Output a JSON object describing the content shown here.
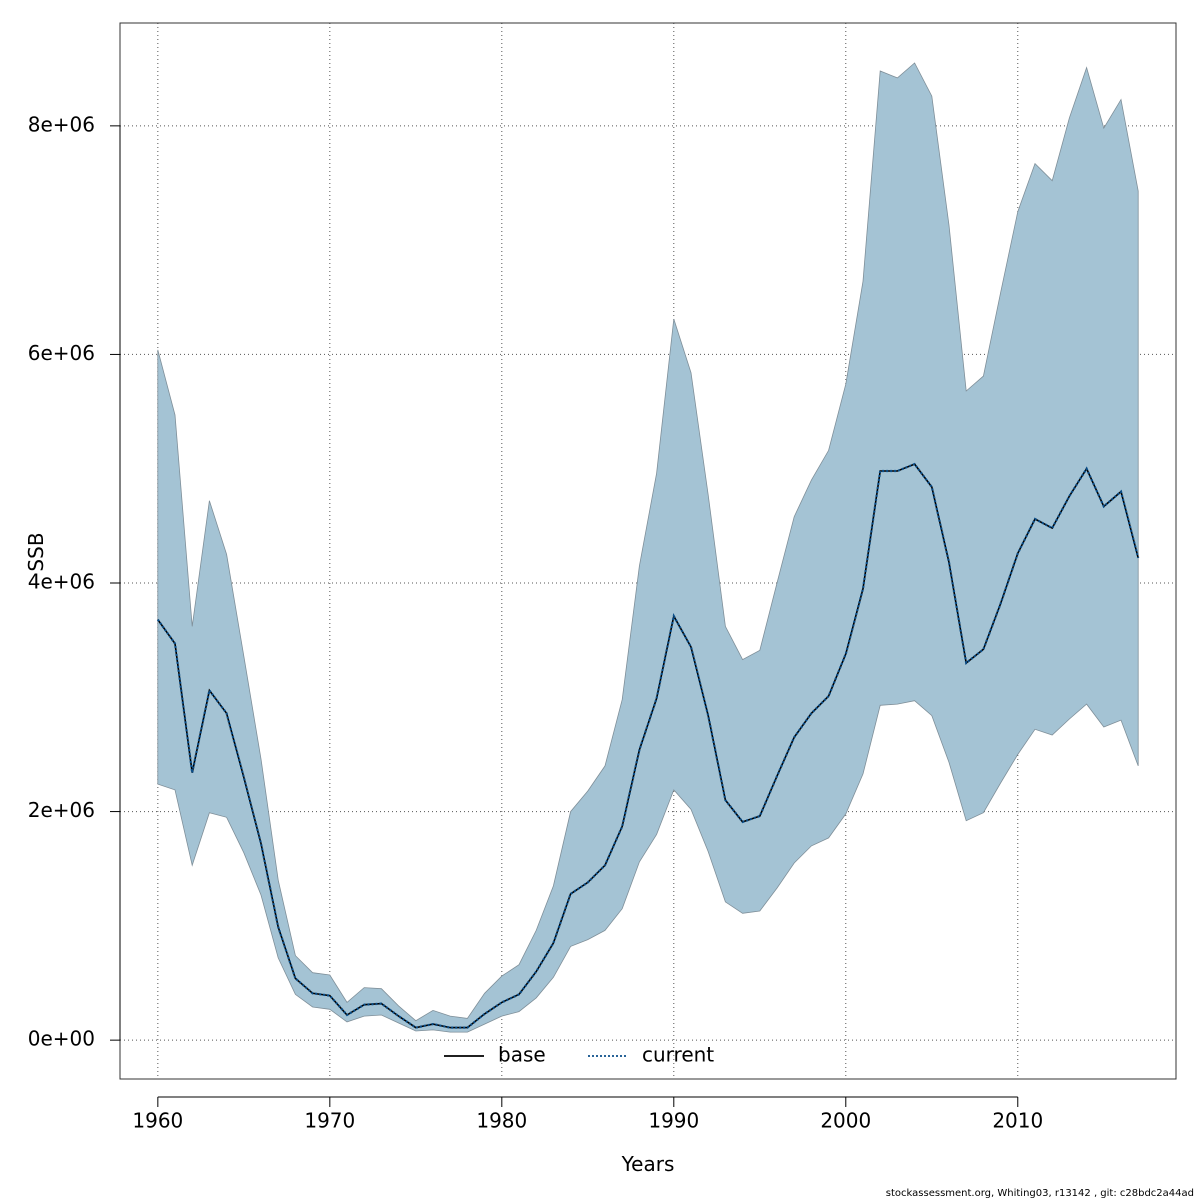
{
  "chart_data": {
    "type": "area",
    "title": "",
    "xlabel": "Years",
    "ylabel": "SSB",
    "xlim": [
      1957.8,
      2019.2
    ],
    "ylim": [
      -340000,
      8900000
    ],
    "x_ticks": [
      1960,
      1970,
      1980,
      1990,
      2000,
      2010
    ],
    "x_tick_labels": [
      "1960",
      "1970",
      "1980",
      "1990",
      "2000",
      "2010"
    ],
    "y_ticks": [
      0,
      2000000,
      4000000,
      6000000,
      8000000
    ],
    "y_tick_labels": [
      "0e+00",
      "2e+06",
      "4e+06",
      "6e+06",
      "8e+06"
    ],
    "grid": true,
    "legend_position": "bottom",
    "x": [
      1960,
      1961,
      1962,
      1963,
      1964,
      1965,
      1966,
      1967,
      1968,
      1969,
      1970,
      1971,
      1972,
      1973,
      1974,
      1975,
      1976,
      1977,
      1978,
      1979,
      1980,
      1981,
      1982,
      1983,
      1984,
      1985,
      1986,
      1987,
      1988,
      1989,
      1990,
      1991,
      1992,
      1993,
      1994,
      1995,
      1996,
      1997,
      1998,
      1999,
      2000,
      2001,
      2002,
      2003,
      2004,
      2005,
      2006,
      2007,
      2008,
      2009,
      2010,
      2011,
      2012,
      2013,
      2014,
      2015,
      2016,
      2017
    ],
    "band": {
      "name": "",
      "color": "#a4c3d4",
      "upper": [
        6040000,
        5470000,
        3620000,
        4720000,
        4250000,
        3360000,
        2460000,
        1400000,
        740000,
        590000,
        570000,
        330000,
        460000,
        450000,
        300000,
        170000,
        260000,
        210000,
        190000,
        410000,
        560000,
        660000,
        960000,
        1350000,
        2000000,
        2180000,
        2400000,
        2980000,
        4150000,
        4960000,
        6310000,
        5840000,
        4770000,
        3620000,
        3330000,
        3410000,
        4000000,
        4580000,
        4900000,
        5160000,
        5740000,
        6640000,
        8480000,
        8420000,
        8550000,
        8260000,
        7130000,
        5680000,
        5810000,
        6540000,
        7250000,
        7670000,
        7520000,
        8070000,
        8510000,
        7980000,
        8230000,
        7430000
      ],
      "lower": [
        2240000,
        2190000,
        1530000,
        1990000,
        1950000,
        1640000,
        1270000,
        720000,
        400000,
        290000,
        270000,
        160000,
        210000,
        220000,
        150000,
        80000,
        90000,
        70000,
        70000,
        140000,
        210000,
        250000,
        370000,
        550000,
        820000,
        880000,
        960000,
        1150000,
        1560000,
        1800000,
        2190000,
        2020000,
        1650000,
        1210000,
        1110000,
        1130000,
        1330000,
        1550000,
        1700000,
        1770000,
        1980000,
        2330000,
        2930000,
        2940000,
        2970000,
        2840000,
        2430000,
        1920000,
        1990000,
        2250000,
        2500000,
        2720000,
        2670000,
        2810000,
        2940000,
        2740000,
        2800000,
        2400000
      ]
    },
    "series": [
      {
        "name": "base",
        "color": "#000000",
        "line_style": "solid",
        "values": [
          3680000,
          3470000,
          2340000,
          3060000,
          2860000,
          2300000,
          1720000,
          990000,
          540000,
          410000,
          390000,
          220000,
          310000,
          320000,
          210000,
          110000,
          140000,
          110000,
          110000,
          230000,
          330000,
          400000,
          600000,
          850000,
          1280000,
          1380000,
          1530000,
          1870000,
          2540000,
          2990000,
          3710000,
          3440000,
          2840000,
          2100000,
          1910000,
          1960000,
          2310000,
          2650000,
          2860000,
          3010000,
          3380000,
          3950000,
          4980000,
          4980000,
          5040000,
          4840000,
          4180000,
          3300000,
          3420000,
          3820000,
          4260000,
          4560000,
          4480000,
          4760000,
          5000000,
          4670000,
          4800000,
          4220000
        ]
      },
      {
        "name": "current",
        "color": "#0b4f8a",
        "line_style": "dotted",
        "values": [
          3680000,
          3470000,
          2340000,
          3060000,
          2860000,
          2300000,
          1720000,
          990000,
          540000,
          410000,
          390000,
          220000,
          310000,
          320000,
          210000,
          110000,
          140000,
          110000,
          110000,
          230000,
          330000,
          400000,
          600000,
          850000,
          1280000,
          1380000,
          1530000,
          1870000,
          2540000,
          2990000,
          3710000,
          3440000,
          2840000,
          2100000,
          1910000,
          1960000,
          2310000,
          2650000,
          2860000,
          3010000,
          3380000,
          3950000,
          4980000,
          4980000,
          5040000,
          4840000,
          4180000,
          3300000,
          3420000,
          3820000,
          4260000,
          4560000,
          4480000,
          4760000,
          5000000,
          4670000,
          4800000,
          4220000
        ]
      }
    ],
    "footer": "stockassessment.org, Whiting03, r13142 , git: c28bdc2a44ad"
  }
}
